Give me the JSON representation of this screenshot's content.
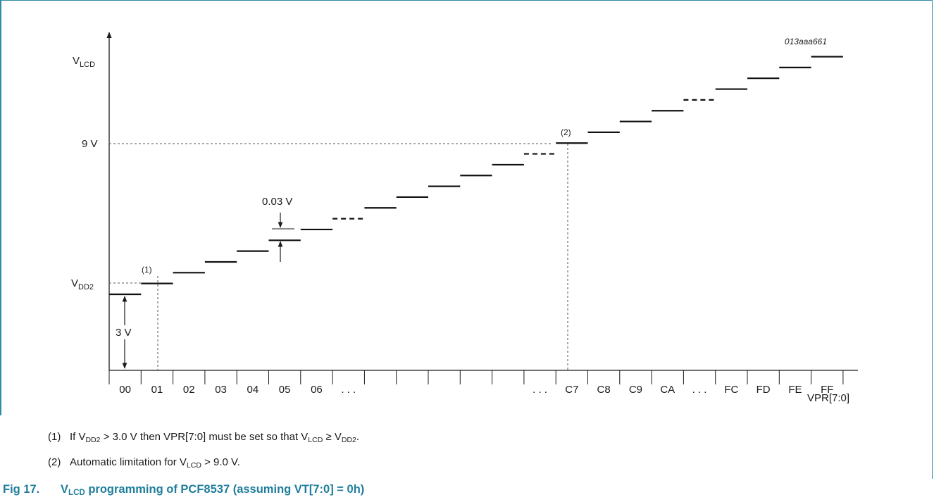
{
  "figure_id": "013aaa661",
  "y_axis": {
    "label_main": "V",
    "label_sub": "LCD",
    "tick_vdd2_main": "V",
    "tick_vdd2_sub": "DD2",
    "tick_9v": "9 V"
  },
  "x_axis": {
    "label": "VPR[7:0]",
    "slots": [
      "00",
      "01",
      "02",
      "03",
      "04",
      "05",
      "06",
      ". . .",
      "",
      "",
      "",
      "",
      "",
      ". . .",
      "C7",
      "C8",
      "C9",
      "CA",
      ". . .",
      "FC",
      "FD",
      "FE",
      "FF"
    ]
  },
  "annotations": {
    "marker_1": "(1)",
    "marker_2": "(2)",
    "step": "0.03 V",
    "base": "3 V"
  },
  "levels": [
    {
      "slot": 0,
      "level": 0,
      "dashed": false
    },
    {
      "slot": 1,
      "level": 1,
      "dashed": false
    },
    {
      "slot": 2,
      "level": 2,
      "dashed": false
    },
    {
      "slot": 3,
      "level": 3,
      "dashed": false
    },
    {
      "slot": 4,
      "level": 4,
      "dashed": false
    },
    {
      "slot": 5,
      "level": 5,
      "dashed": false
    },
    {
      "slot": 6,
      "level": 6,
      "dashed": false
    },
    {
      "slot": 7,
      "level": 7,
      "dashed": true
    },
    {
      "slot": 8,
      "level": 8,
      "dashed": false
    },
    {
      "slot": 9,
      "level": 9,
      "dashed": false
    },
    {
      "slot": 10,
      "level": 10,
      "dashed": false
    },
    {
      "slot": 11,
      "level": 11,
      "dashed": false
    },
    {
      "slot": 12,
      "level": 12,
      "dashed": false
    },
    {
      "slot": 13,
      "level": 13,
      "dashed": true
    },
    {
      "slot": 14,
      "level": 14,
      "dashed": false
    },
    {
      "slot": 15,
      "level": 15,
      "dashed": false
    },
    {
      "slot": 16,
      "level": 16,
      "dashed": false
    },
    {
      "slot": 17,
      "level": 17,
      "dashed": false
    },
    {
      "slot": 18,
      "level": 18,
      "dashed": true
    },
    {
      "slot": 19,
      "level": 19,
      "dashed": false
    },
    {
      "slot": 20,
      "level": 20,
      "dashed": false
    },
    {
      "slot": 21,
      "level": 21,
      "dashed": false
    },
    {
      "slot": 22,
      "level": 22,
      "dashed": false
    }
  ],
  "notes": [
    {
      "num": "(1)",
      "t1": "If V",
      "s1": "DD2",
      "t2": " > 3.0 V then VPR[7:0] must be set so that V",
      "s2": "LCD",
      "t3": " ≥ V",
      "s3": "DD2",
      "t4": "."
    },
    {
      "num": "(2)",
      "t1": "Automatic limitation for V",
      "s1": "LCD",
      "t2": " > 9.0 V."
    }
  ],
  "caption": {
    "fig": "Fig 17.",
    "t1": "V",
    "s1": "LCD",
    "t2": " programming of PCF8537 (assuming VT[7:0] = 0h)"
  }
}
